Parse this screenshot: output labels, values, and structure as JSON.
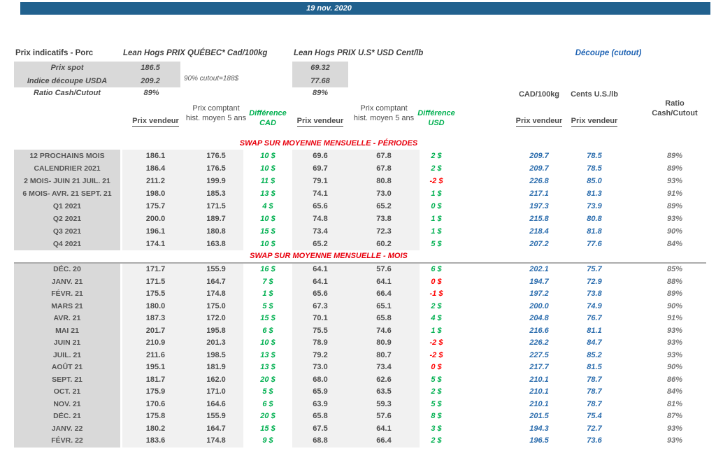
{
  "date": "19 nov. 2020",
  "header": {
    "title": "Prix indicatifs - Porc",
    "quebec_series": "Lean Hogs PRIX QUÉBEC* Cad/100kg",
    "us_series": "Lean Hogs PRIX U.S* USD Cent/lb",
    "cutout_title": "Découpe (cutout)",
    "spot_label": "Prix spot",
    "spot_cad": "186.5",
    "spot_usd": "69.32",
    "usda_label": "Indice découpe USDA",
    "usda_cad": "209.2",
    "usda_usd": "77.68",
    "cutout_note": "90% cutout=188$",
    "ratio_label": "Ratio Cash/Cutout",
    "ratio_cad": "89%",
    "ratio_usd": "89%",
    "cutout_unit_cad": "CAD/100kg",
    "cutout_unit_us": "Cents U.S./lb",
    "ratio_header_line1": "Ratio",
    "ratio_header_line2": "Cash/Cutout"
  },
  "column_headers": {
    "prix_vendeur": "Prix vendeur",
    "prix_comptant": "Prix comptant hist. moyen 5 ans",
    "difference_line1": "Différence",
    "difference_cad_line2": "CAD",
    "difference_usd_line2": "USD"
  },
  "colors": {
    "bar_blue": "#21618E",
    "data_blue": "#2A6CAD",
    "positive_green": "#00B050",
    "negative_red": "#FF0000",
    "section_red": "#E8000D",
    "label_gray": "#D9D9D9",
    "band_gray": "#F1F1F1"
  },
  "sections": [
    {
      "title": "SWAP SUR MOYENNE MENSUELLE - PÉRIODES",
      "separator_below_title": false,
      "rows": [
        {
          "label": "12 PROCHAINS MOIS",
          "pv_cad": "186.1",
          "pc_cad": "176.5",
          "d_cad": "10 $",
          "pv_usd": "69.6",
          "pc_usd": "67.8",
          "d_usd": "2 $",
          "cut_cad": "209.7",
          "cut_us": "78.5",
          "ratio": "89%"
        },
        {
          "label": "CALENDRIER 2021",
          "pv_cad": "186.4",
          "pc_cad": "176.5",
          "d_cad": "10 $",
          "pv_usd": "69.7",
          "pc_usd": "67.8",
          "d_usd": "2 $",
          "cut_cad": "209.7",
          "cut_us": "78.5",
          "ratio": "89%"
        },
        {
          "label": "2 MOIS- JUIN 21 JUIL. 21",
          "pv_cad": "211.2",
          "pc_cad": "199.9",
          "d_cad": "11 $",
          "pv_usd": "79.1",
          "pc_usd": "80.8",
          "d_usd": "-2 $",
          "d_usd_neg": true,
          "cut_cad": "226.8",
          "cut_us": "85.0",
          "ratio": "93%"
        },
        {
          "label": "6 MOIS- AVR. 21 SEPT. 21",
          "pv_cad": "198.0",
          "pc_cad": "185.3",
          "d_cad": "13 $",
          "pv_usd": "74.1",
          "pc_usd": "73.0",
          "d_usd": "1 $",
          "cut_cad": "217.1",
          "cut_us": "81.3",
          "ratio": "91%"
        },
        {
          "label": "Q1 2021",
          "pv_cad": "175.7",
          "pc_cad": "171.5",
          "d_cad": "4 $",
          "pv_usd": "65.6",
          "pc_usd": "65.2",
          "d_usd": "0 $",
          "cut_cad": "197.3",
          "cut_us": "73.9",
          "ratio": "89%"
        },
        {
          "label": "Q2 2021",
          "pv_cad": "200.0",
          "pc_cad": "189.7",
          "d_cad": "10 $",
          "pv_usd": "74.8",
          "pc_usd": "73.8",
          "d_usd": "1 $",
          "cut_cad": "215.8",
          "cut_us": "80.8",
          "ratio": "93%"
        },
        {
          "label": "Q3 2021",
          "pv_cad": "196.1",
          "pc_cad": "180.8",
          "d_cad": "15 $",
          "pv_usd": "73.4",
          "pc_usd": "72.3",
          "d_usd": "1 $",
          "cut_cad": "218.4",
          "cut_us": "81.8",
          "ratio": "90%"
        },
        {
          "label": "Q4 2021",
          "pv_cad": "174.1",
          "pc_cad": "163.8",
          "d_cad": "10 $",
          "pv_usd": "65.2",
          "pc_usd": "60.2",
          "d_usd": "5 $",
          "cut_cad": "207.2",
          "cut_us": "77.6",
          "ratio": "84%"
        }
      ]
    },
    {
      "title": "SWAP SUR MOYENNE MENSUELLE - MOIS",
      "separator_below_title": true,
      "rows": [
        {
          "label": "DÉC. 20",
          "pv_cad": "171.7",
          "pc_cad": "155.9",
          "d_cad": "16 $",
          "pv_usd": "64.1",
          "pc_usd": "57.6",
          "d_usd": "6 $",
          "cut_cad": "202.1",
          "cut_us": "75.7",
          "ratio": "85%"
        },
        {
          "label": "JANV. 21",
          "pv_cad": "171.5",
          "pc_cad": "164.7",
          "d_cad": "7 $",
          "pv_usd": "64.1",
          "pc_usd": "64.1",
          "d_usd": "0 $",
          "d_usd_neg": true,
          "cut_cad": "194.7",
          "cut_us": "72.9",
          "ratio": "88%"
        },
        {
          "label": "FÉVR. 21",
          "pv_cad": "175.5",
          "pc_cad": "174.8",
          "d_cad": "1 $",
          "pv_usd": "65.6",
          "pc_usd": "66.4",
          "d_usd": "-1 $",
          "d_usd_neg": true,
          "cut_cad": "197.2",
          "cut_us": "73.8",
          "ratio": "89%"
        },
        {
          "label": "MARS 21",
          "pv_cad": "180.0",
          "pc_cad": "175.0",
          "d_cad": "5 $",
          "pv_usd": "67.3",
          "pc_usd": "65.1",
          "d_usd": "2 $",
          "cut_cad": "200.0",
          "cut_us": "74.9",
          "ratio": "90%"
        },
        {
          "label": "AVR. 21",
          "pv_cad": "187.3",
          "pc_cad": "172.0",
          "d_cad": "15 $",
          "pv_usd": "70.1",
          "pc_usd": "65.8",
          "d_usd": "4 $",
          "cut_cad": "204.8",
          "cut_us": "76.7",
          "ratio": "91%"
        },
        {
          "label": "MAI 21",
          "pv_cad": "201.7",
          "pc_cad": "195.8",
          "d_cad": "6 $",
          "pv_usd": "75.5",
          "pc_usd": "74.6",
          "d_usd": "1 $",
          "cut_cad": "216.6",
          "cut_us": "81.1",
          "ratio": "93%"
        },
        {
          "label": "JUIN 21",
          "pv_cad": "210.9",
          "pc_cad": "201.3",
          "d_cad": "10 $",
          "pv_usd": "78.9",
          "pc_usd": "80.9",
          "d_usd": "-2 $",
          "d_usd_neg": true,
          "cut_cad": "226.2",
          "cut_us": "84.7",
          "ratio": "93%"
        },
        {
          "label": "JUIL. 21",
          "pv_cad": "211.6",
          "pc_cad": "198.5",
          "d_cad": "13 $",
          "pv_usd": "79.2",
          "pc_usd": "80.7",
          "d_usd": "-2 $",
          "d_usd_neg": true,
          "cut_cad": "227.5",
          "cut_us": "85.2",
          "ratio": "93%"
        },
        {
          "label": "AOÛT 21",
          "pv_cad": "195.1",
          "pc_cad": "181.9",
          "d_cad": "13 $",
          "pv_usd": "73.0",
          "pc_usd": "73.4",
          "d_usd": "0 $",
          "d_usd_neg": true,
          "cut_cad": "217.7",
          "cut_us": "81.5",
          "ratio": "90%"
        },
        {
          "label": "SEPT. 21",
          "pv_cad": "181.7",
          "pc_cad": "162.0",
          "d_cad": "20 $",
          "pv_usd": "68.0",
          "pc_usd": "62.6",
          "d_usd": "5 $",
          "cut_cad": "210.1",
          "cut_us": "78.7",
          "ratio": "86%"
        },
        {
          "label": "OCT. 21",
          "pv_cad": "175.9",
          "pc_cad": "171.0",
          "d_cad": "5 $",
          "pv_usd": "65.9",
          "pc_usd": "63.5",
          "d_usd": "2 $",
          "cut_cad": "210.1",
          "cut_us": "78.7",
          "ratio": "84%"
        },
        {
          "label": "NOV. 21",
          "pv_cad": "170.6",
          "pc_cad": "164.6",
          "d_cad": "6 $",
          "pv_usd": "63.9",
          "pc_usd": "59.3",
          "d_usd": "5 $",
          "cut_cad": "210.1",
          "cut_us": "78.7",
          "ratio": "81%"
        },
        {
          "label": "DÉC. 21",
          "pv_cad": "175.8",
          "pc_cad": "155.9",
          "d_cad": "20 $",
          "pv_usd": "65.8",
          "pc_usd": "57.6",
          "d_usd": "8 $",
          "cut_cad": "201.5",
          "cut_us": "75.4",
          "ratio": "87%"
        },
        {
          "label": "JANV. 22",
          "pv_cad": "180.2",
          "pc_cad": "164.7",
          "d_cad": "15 $",
          "pv_usd": "67.5",
          "pc_usd": "64.1",
          "d_usd": "3 $",
          "cut_cad": "194.3",
          "cut_us": "72.7",
          "ratio": "93%"
        },
        {
          "label": "FÉVR. 22",
          "pv_cad": "183.6",
          "pc_cad": "174.8",
          "d_cad": "9 $",
          "pv_usd": "68.8",
          "pc_usd": "66.4",
          "d_usd": "2 $",
          "cut_cad": "196.5",
          "cut_us": "73.6",
          "ratio": "93%"
        }
      ]
    }
  ]
}
